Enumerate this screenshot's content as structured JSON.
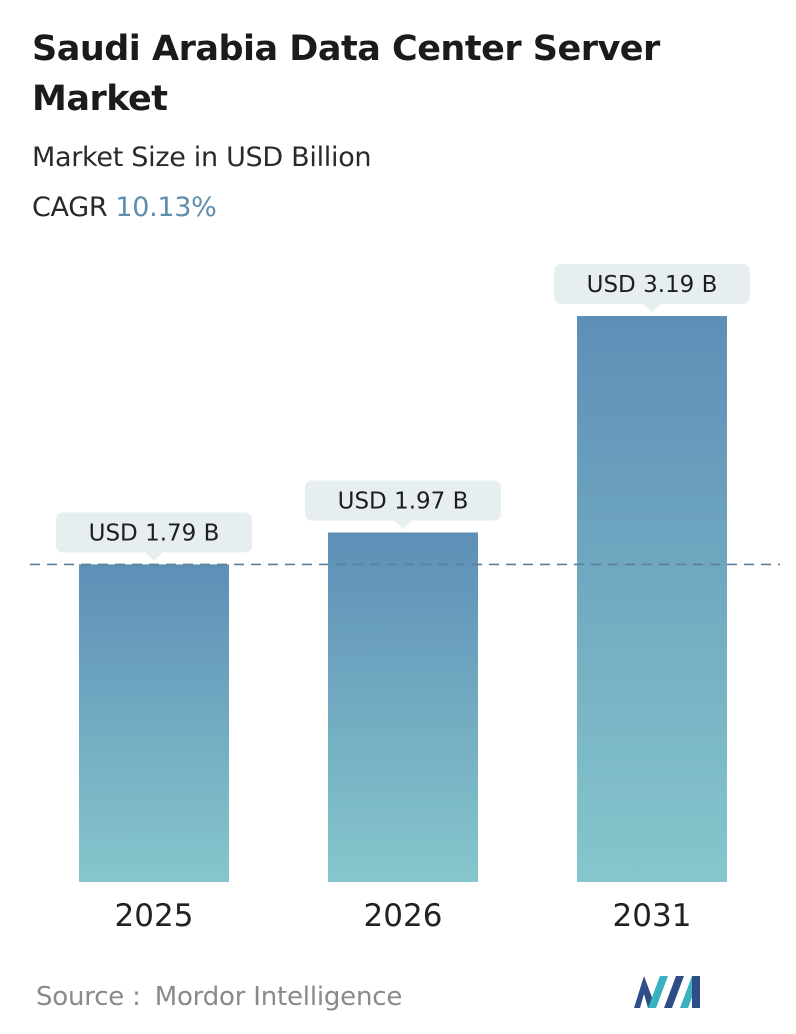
{
  "header": {
    "title": "Saudi Arabia Data Center Server Market",
    "subtitle": "Market Size in USD Billion",
    "cagr_label": "CAGR",
    "cagr_value": "10.13%"
  },
  "chart_data": {
    "type": "bar",
    "categories": [
      "2025",
      "2026",
      "2031"
    ],
    "values": [
      1.79,
      1.97,
      3.19
    ],
    "value_labels": [
      "USD 1.79 B",
      "USD 1.97 B",
      "USD 3.19 B"
    ],
    "reference_line": 1.79,
    "grid": false,
    "legend": "none",
    "colors": {
      "bar_top": "#5d8fb7",
      "bar_bottom": "#86c6cc",
      "label_bg": "#e6eef0",
      "dashed_line": "#5f7f96",
      "axis_text": "#222222"
    }
  },
  "footer": {
    "source_label": "Source :",
    "source_name": "Mordor Intelligence"
  },
  "logo": {
    "icon": "mordor-intelligence-logo-icon",
    "colors": [
      "#2f4e87",
      "#38b3bd"
    ]
  }
}
